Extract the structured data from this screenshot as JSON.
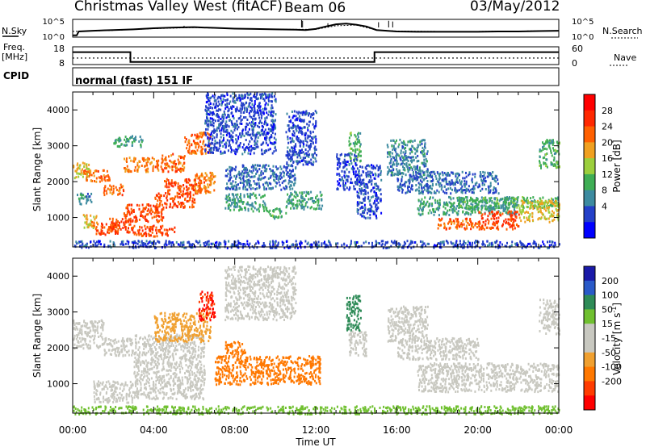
{
  "header": {
    "site": "Christmas Valley West (fitACF)",
    "beam": "Beam 06",
    "date": "03/May/2012"
  },
  "panels": {
    "noise": {
      "left_label": "N.Sky",
      "right_label": "N.Search",
      "left_ticks": [
        "10^5",
        "10^0"
      ],
      "right_ticks": [
        "10^5",
        "10^0"
      ]
    },
    "frequency": {
      "left_label_line1": "Freq.",
      "left_label_line2": "[MHz]",
      "right_label": "Nave",
      "left_ticks": [
        "18",
        "8"
      ],
      "right_ticks": [
        "60",
        "0"
      ]
    },
    "cpid": {
      "label": "CPID",
      "text": "normal (fast) 151 IF"
    }
  },
  "colors": {
    "power_scale": [
      "#0000ff",
      "#2440c8",
      "#3d8ba0",
      "#3fae55",
      "#9ccf3d",
      "#f0a020",
      "#ff6000",
      "#ff2800",
      "#ff0000"
    ],
    "velocity_scale": [
      "#1a1aa8",
      "#2a5ac8",
      "#2e8b57",
      "#70c030",
      "#c8c8c0",
      "#c8c8c0",
      "#f0a030",
      "#ff7800",
      "#ff3c00",
      "#ff0000"
    ]
  },
  "chart_data": [
    {
      "type": "line",
      "name": "noise",
      "x_unit": "hours UT",
      "xlim": [
        0,
        24
      ],
      "ylim_log10": [
        0,
        5
      ],
      "series": [
        {
          "name": "N.Sky",
          "x": [
            0,
            0.2,
            0.3,
            1,
            2,
            3,
            4,
            5,
            6,
            7,
            8,
            9,
            10,
            11,
            11.5,
            12,
            12.5,
            13,
            13.5,
            14,
            14.5,
            15,
            16,
            17,
            18,
            19,
            20,
            21,
            22,
            23,
            24
          ],
          "y": [
            0.5,
            0.5,
            1.6,
            1.8,
            2.0,
            2.2,
            2.5,
            2.7,
            2.8,
            2.6,
            2.4,
            2.3,
            2.2,
            2.1,
            2.0,
            2.3,
            3.0,
            3.6,
            3.8,
            3.5,
            3.0,
            2.0,
            1.6,
            1.5,
            1.5,
            1.5,
            1.5,
            1.6,
            1.6,
            1.7,
            1.8
          ]
        },
        {
          "name": "N.Search",
          "x": [
            0,
            2,
            4,
            6,
            8,
            10,
            12,
            13,
            14,
            15,
            16,
            18,
            20,
            22,
            24
          ],
          "y": [
            1.6,
            1.9,
            2.4,
            2.7,
            2.4,
            2.2,
            2.2,
            3.2,
            3.4,
            2.0,
            1.7,
            1.6,
            1.6,
            1.7,
            1.8
          ]
        }
      ]
    },
    {
      "type": "line",
      "name": "frequency",
      "x_unit": "hours UT",
      "xlim": [
        0,
        24
      ],
      "series": [
        {
          "name": "Freq.",
          "axis": "left",
          "ylim": [
            8,
            18
          ],
          "x": [
            0,
            2.85,
            2.85,
            14.9,
            14.9,
            24
          ],
          "y": [
            15,
            15,
            9.5,
            9.5,
            15,
            15
          ]
        },
        {
          "name": "Nave",
          "axis": "right",
          "ylim": [
            0,
            60
          ],
          "x": [
            0,
            24
          ],
          "y": [
            22,
            22
          ]
        }
      ]
    },
    {
      "type": "heatmap",
      "name": "power",
      "xlabel": "",
      "ylabel": "Slant Range [km]",
      "xlim": [
        0,
        24
      ],
      "ylim": [
        180,
        4500
      ],
      "yticks": [
        "1000",
        "2000",
        "3000",
        "4000"
      ],
      "colorbar_label": "Power [dB]",
      "colorbar_ticks": [
        "4",
        "8",
        "12",
        "16",
        "20",
        "24",
        "28"
      ],
      "scatter_regions": [
        {
          "t0": 0.0,
          "t1": 0.8,
          "r0": 2100,
          "r1": 2600,
          "value": 20
        },
        {
          "t0": 0.1,
          "t1": 0.9,
          "r0": 1400,
          "r1": 1700,
          "value": 10
        },
        {
          "t0": 0.5,
          "t1": 1.8,
          "r0": 2000,
          "r1": 2350,
          "value": 26
        },
        {
          "t0": 1.5,
          "t1": 2.5,
          "r0": 1650,
          "r1": 1950,
          "value": 26
        },
        {
          "t0": 1.0,
          "t1": 2.2,
          "r0": 550,
          "r1": 900,
          "value": 28
        },
        {
          "t0": 0.5,
          "t1": 1.2,
          "r0": 700,
          "r1": 1100,
          "value": 22
        },
        {
          "t0": 1.8,
          "t1": 3.0,
          "r0": 600,
          "r1": 1000,
          "value": 28
        },
        {
          "t0": 2.5,
          "t1": 4.5,
          "r0": 900,
          "r1": 1400,
          "value": 28
        },
        {
          "t0": 3.0,
          "t1": 5.0,
          "r0": 500,
          "r1": 800,
          "value": 28
        },
        {
          "t0": 4.0,
          "t1": 6.0,
          "r0": 1300,
          "r1": 1700,
          "value": 28
        },
        {
          "t0": 4.5,
          "t1": 6.5,
          "r0": 1700,
          "r1": 2100,
          "value": 28
        },
        {
          "t0": 2.5,
          "t1": 4.0,
          "r0": 2300,
          "r1": 2700,
          "value": 24
        },
        {
          "t0": 4.0,
          "t1": 5.5,
          "r0": 2300,
          "r1": 2800,
          "value": 26
        },
        {
          "t0": 5.5,
          "t1": 6.8,
          "r0": 2800,
          "r1": 3400,
          "value": 26
        },
        {
          "t0": 6.0,
          "t1": 7.0,
          "r0": 1700,
          "r1": 2300,
          "value": 24
        },
        {
          "t0": 2.0,
          "t1": 3.5,
          "r0": 3000,
          "r1": 3300,
          "value": 12
        },
        {
          "t0": 6.5,
          "t1": 10.0,
          "r0": 2800,
          "r1": 4500,
          "value": 6
        },
        {
          "t0": 7.5,
          "t1": 11.0,
          "r0": 1800,
          "r1": 2500,
          "value": 8
        },
        {
          "t0": 7.5,
          "t1": 9.5,
          "r0": 1200,
          "r1": 1700,
          "value": 12
        },
        {
          "t0": 9.5,
          "t1": 10.5,
          "r0": 1000,
          "r1": 1300,
          "value": 14
        },
        {
          "t0": 10.5,
          "t1": 12.3,
          "r0": 1250,
          "r1": 1750,
          "value": 12
        },
        {
          "t0": 10.5,
          "t1": 12.0,
          "r0": 2500,
          "r1": 4000,
          "value": 6
        },
        {
          "t0": 13.6,
          "t1": 14.2,
          "r0": 2600,
          "r1": 3400,
          "value": 14
        },
        {
          "t0": 13.0,
          "t1": 14.0,
          "r0": 1800,
          "r1": 2800,
          "value": 6
        },
        {
          "t0": 14.0,
          "t1": 15.2,
          "r0": 1000,
          "r1": 2500,
          "value": 6
        },
        {
          "t0": 15.5,
          "t1": 17.5,
          "r0": 2200,
          "r1": 3200,
          "value": 10
        },
        {
          "t0": 16.0,
          "t1": 21.0,
          "r0": 1700,
          "r1": 2300,
          "value": 8
        },
        {
          "t0": 17.0,
          "t1": 22.0,
          "r0": 1100,
          "r1": 1600,
          "value": 12
        },
        {
          "t0": 19.0,
          "t1": 24.0,
          "r0": 1300,
          "r1": 1600,
          "value": 14
        },
        {
          "t0": 18.0,
          "t1": 20.0,
          "r0": 700,
          "r1": 1000,
          "value": 26
        },
        {
          "t0": 20.0,
          "t1": 22.0,
          "r0": 700,
          "r1": 1200,
          "value": 28
        },
        {
          "t0": 22.0,
          "t1": 24.0,
          "r0": 900,
          "r1": 1500,
          "value": 20
        },
        {
          "t0": 23.0,
          "t1": 24.0,
          "r0": 2400,
          "r1": 3200,
          "value": 14
        },
        {
          "t0": 0.0,
          "t1": 24.0,
          "r0": 180,
          "r1": 380,
          "value": 6
        }
      ]
    },
    {
      "type": "heatmap",
      "name": "velocity",
      "xlabel": "Time UT",
      "ylabel": "Slant Range [km]",
      "xlim": [
        0,
        24
      ],
      "ylim": [
        180,
        4500
      ],
      "yticks": [
        "1000",
        "2000",
        "3000",
        "4000"
      ],
      "xticks": [
        "00:00",
        "04:00",
        "08:00",
        "12:00",
        "16:00",
        "20:00",
        "00:00"
      ],
      "colorbar_label": "Velocity [m s",
      "colorbar_label_sup": "-1",
      "colorbar_label_end": "]",
      "colorbar_ticks": [
        "200",
        "100",
        "50",
        "15",
        "-15",
        "-50",
        "-100",
        "-200"
      ],
      "scatter_regions": [
        {
          "t0": 0.0,
          "t1": 1.5,
          "r0": 2000,
          "r1": 2800,
          "value": 0
        },
        {
          "t0": 1.5,
          "t1": 3.0,
          "r0": 1800,
          "r1": 2300,
          "value": 0
        },
        {
          "t0": 1.0,
          "t1": 3.0,
          "r0": 500,
          "r1": 1100,
          "value": 0
        },
        {
          "t0": 3.0,
          "t1": 6.5,
          "r0": 600,
          "r1": 2400,
          "value": 0
        },
        {
          "t0": 4.0,
          "t1": 6.8,
          "r0": 2200,
          "r1": 3000,
          "value": -20
        },
        {
          "t0": 6.2,
          "t1": 7.0,
          "r0": 2800,
          "r1": 3600,
          "value": -200
        },
        {
          "t0": 7.5,
          "t1": 11.0,
          "r0": 2800,
          "r1": 4300,
          "value": 0
        },
        {
          "t0": 7.0,
          "t1": 12.2,
          "r0": 1000,
          "r1": 1800,
          "value": -90
        },
        {
          "t0": 7.5,
          "t1": 8.5,
          "r0": 1800,
          "r1": 2200,
          "value": -60
        },
        {
          "t0": 13.5,
          "t1": 14.2,
          "r0": 2500,
          "r1": 3500,
          "value": 60
        },
        {
          "t0": 13.6,
          "t1": 14.5,
          "r0": 1800,
          "r1": 2500,
          "value": 0
        },
        {
          "t0": 15.5,
          "t1": 17.5,
          "r0": 2200,
          "r1": 3200,
          "value": 0
        },
        {
          "t0": 16.0,
          "t1": 20.0,
          "r0": 1700,
          "r1": 2300,
          "value": 0
        },
        {
          "t0": 17.0,
          "t1": 24.0,
          "r0": 800,
          "r1": 1600,
          "value": 0
        },
        {
          "t0": 23.0,
          "t1": 24.0,
          "r0": 2400,
          "r1": 3400,
          "value": 0
        },
        {
          "t0": 0.0,
          "t1": 24.0,
          "r0": 180,
          "r1": 400,
          "value": 40
        }
      ]
    }
  ]
}
